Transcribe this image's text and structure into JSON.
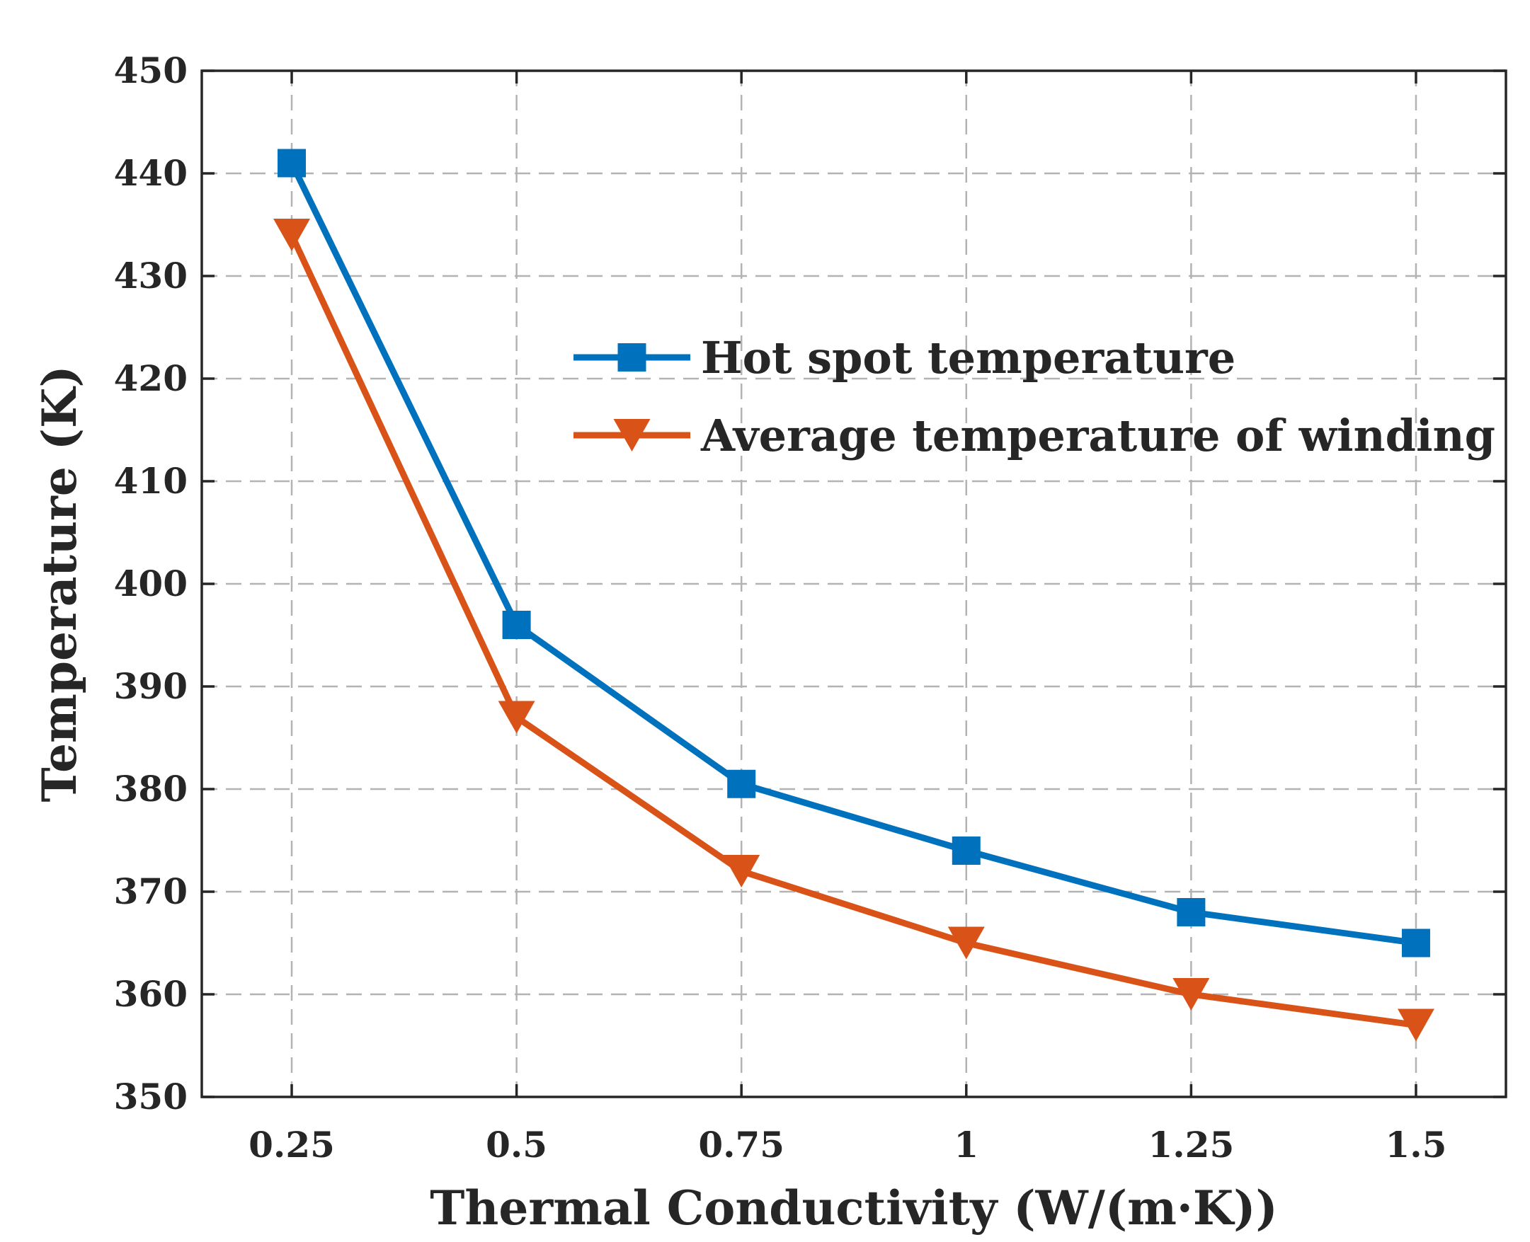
{
  "chart_data": {
    "type": "line",
    "title": "",
    "xlabel": "Thermal Conductivity (W/(m·K))",
    "ylabel": "Temperature (K)",
    "x": [
      0.25,
      0.5,
      0.75,
      1,
      1.25,
      1.5
    ],
    "x_tick_labels": [
      "0.25",
      "0.5",
      "0.75",
      "1",
      "1.25",
      "1.5"
    ],
    "xlim": [
      0.15,
      1.6
    ],
    "ylim": [
      350,
      450
    ],
    "y_ticks": [
      350,
      360,
      370,
      380,
      390,
      400,
      410,
      420,
      430,
      440,
      450
    ],
    "y_tick_labels": [
      "350",
      "360",
      "370",
      "380",
      "390",
      "400",
      "410",
      "420",
      "430",
      "440",
      "450"
    ],
    "grid": true,
    "legend_position": "upper-right",
    "series": [
      {
        "name": "Hot spot temperature",
        "values": [
          441,
          396,
          380.5,
          374,
          368,
          365
        ],
        "color": "#0072bd",
        "marker": "square"
      },
      {
        "name": "Average temperature of winding",
        "values": [
          434,
          387,
          372,
          365,
          360,
          357
        ],
        "color": "#d95319",
        "marker": "triangle-down"
      }
    ]
  }
}
